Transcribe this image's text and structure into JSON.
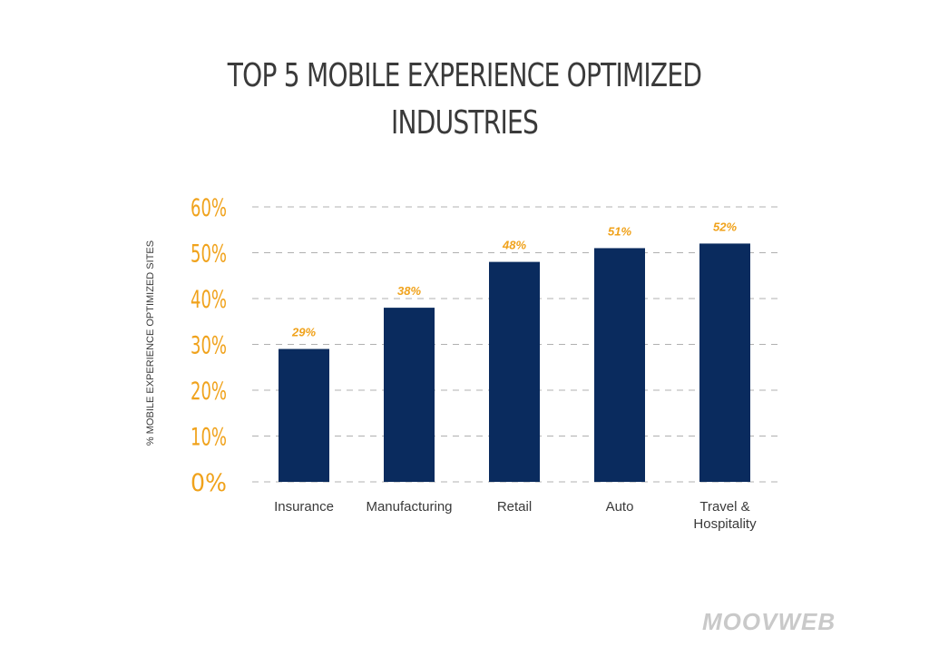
{
  "title_line1": "TOP 5 MOBILE EXPERIENCE OPTIMIZED",
  "title_line2": "INDUSTRIES",
  "logo_text": "MOOVWEB",
  "colors": {
    "bar": "#0a2b5e",
    "accent": "#f0a21b",
    "grid": "#b0b0b0",
    "text": "#3a3a3a",
    "logo": "#c9c9c9"
  },
  "chart_data": {
    "type": "bar",
    "title": "TOP 5 MOBILE EXPERIENCE OPTIMIZED INDUSTRIES",
    "ylabel": "% MOBILE EXPERIENCE OPTIMIZED SITES",
    "xlabel": "",
    "categories": [
      [
        "Insurance"
      ],
      [
        "Manufacturing"
      ],
      [
        "Retail"
      ],
      [
        "Auto"
      ],
      [
        "Travel &",
        "Hospitality"
      ]
    ],
    "values": [
      29,
      38,
      48,
      51,
      52
    ],
    "value_labels": [
      "29%",
      "38%",
      "48%",
      "51%",
      "52%"
    ],
    "ylim": [
      0,
      60
    ],
    "yticks": [
      0,
      10,
      20,
      30,
      40,
      50,
      60
    ],
    "ytick_labels": [
      "0%",
      "10%",
      "20%",
      "30%",
      "40%",
      "50%",
      "60%"
    ],
    "grid": true,
    "grid_style": "dashed"
  }
}
